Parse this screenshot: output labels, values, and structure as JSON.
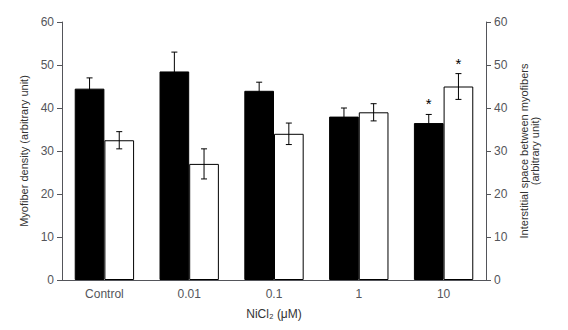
{
  "chart_data": {
    "type": "bar",
    "categories": [
      "Control",
      "0.01",
      "0.1",
      "1",
      "10"
    ],
    "series": [
      {
        "color": "#000000",
        "values": [
          44.5,
          48.5,
          44.0,
          38.0,
          36.5
        ],
        "errors": [
          2.5,
          4.5,
          2.0,
          2.0,
          2.0
        ],
        "sig_labels": [
          null,
          null,
          null,
          null,
          "*"
        ]
      },
      {
        "color": "#ffffff",
        "edge_color": "#000000",
        "values": [
          32.5,
          27.0,
          34.0,
          39.0,
          45.0
        ],
        "errors": [
          2.0,
          3.5,
          2.5,
          2.0,
          3.0
        ],
        "sig_labels": [
          null,
          null,
          null,
          null,
          "*"
        ]
      }
    ],
    "xlabel": "NiCl₂ (μM)",
    "ylabel": "Myofiber density (arbitrary unit)",
    "y2label": "Interstitial space between myofibers\n(arbitrary unit)",
    "ylim": [
      0,
      60
    ],
    "yticks": [
      0,
      10,
      20,
      30,
      40,
      50,
      60
    ],
    "y2lim": [
      0,
      60
    ],
    "y2ticks": [
      0,
      10,
      20,
      30,
      40,
      50,
      60
    ],
    "grid": false
  }
}
